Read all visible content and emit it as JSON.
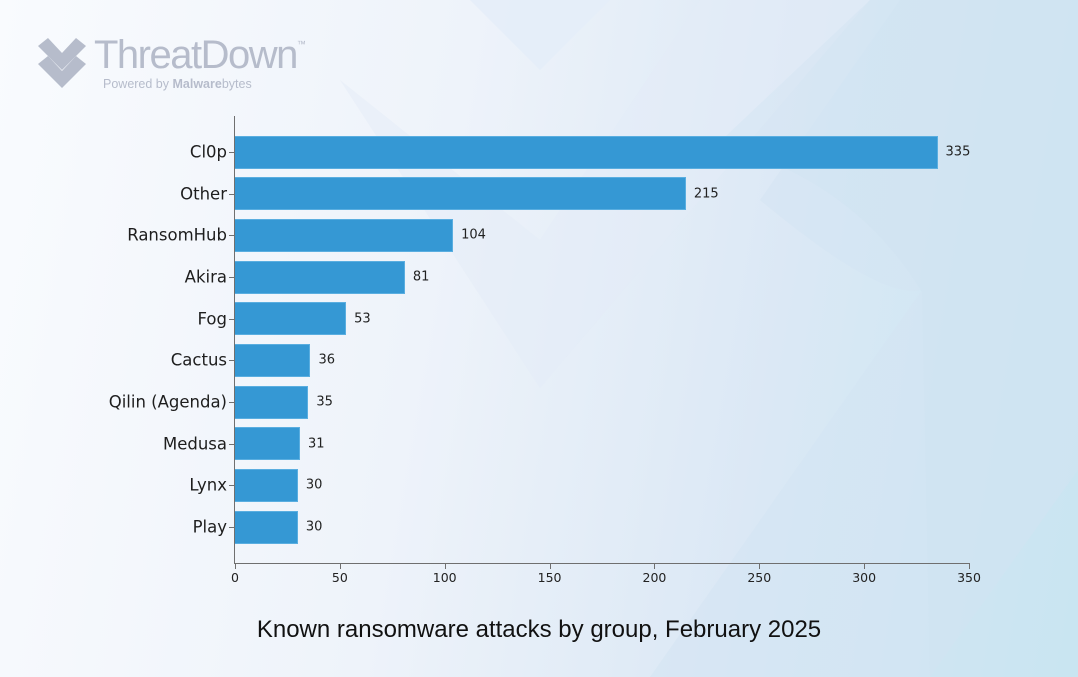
{
  "brand": {
    "name_light": "Threat",
    "name_bold": "Down",
    "trademark": "™",
    "tagline_prefix": "Powered by ",
    "tagline_brand": "Malware",
    "tagline_suffix": "bytes"
  },
  "colors": {
    "bar": "#3598d4",
    "axis": "#6f6f6f",
    "logo": "#b6bccb"
  },
  "chart_data": {
    "type": "bar",
    "orientation": "horizontal",
    "title": "Known ransomware attacks by group, February 2025",
    "xlabel": "",
    "ylabel": "",
    "categories": [
      "Cl0p",
      "Other",
      "RansomHub",
      "Akira",
      "Fog",
      "Cactus",
      "Qilin (Agenda)",
      "Medusa",
      "Lynx",
      "Play"
    ],
    "values": [
      335,
      215,
      104,
      81,
      53,
      36,
      35,
      31,
      30,
      30
    ],
    "xlim": [
      0,
      350
    ],
    "xticks": [
      "0",
      "50",
      "100",
      "150",
      "200",
      "250",
      "300",
      "350"
    ],
    "grid": false,
    "legend": null,
    "data_labels": true
  }
}
